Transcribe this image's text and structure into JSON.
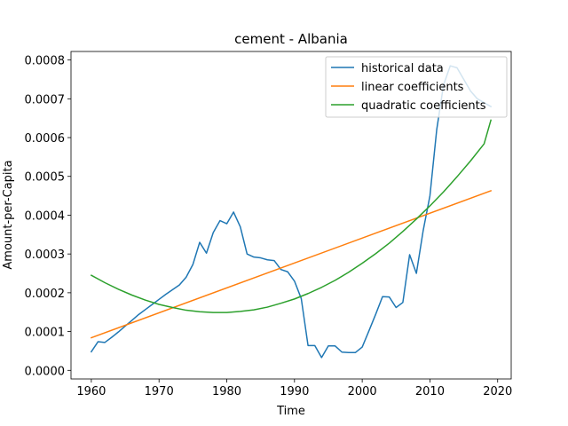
{
  "chart_data": {
    "type": "line",
    "title": "cement - Albania",
    "xlabel": "Time",
    "ylabel": "Amount-per-Capita",
    "xlim": [
      1957,
      2022
    ],
    "ylim": [
      -2.22e-05,
      0.000822
    ],
    "xticks": [
      1960,
      1970,
      1980,
      1990,
      2000,
      2010,
      2020
    ],
    "yticks": [
      {
        "value": 0,
        "label": "0.0000"
      },
      {
        "value": 0.0001,
        "label": "0.0001"
      },
      {
        "value": 0.0002,
        "label": "0.0002"
      },
      {
        "value": 0.0003,
        "label": "0.0003"
      },
      {
        "value": 0.0004,
        "label": "0.0004"
      },
      {
        "value": 0.0005,
        "label": "0.0005"
      },
      {
        "value": 0.0006,
        "label": "0.0006"
      },
      {
        "value": 0.0007,
        "label": "0.0007"
      },
      {
        "value": 0.0008,
        "label": "0.0008"
      }
    ],
    "grid": false,
    "legend_position": "top-right",
    "series": [
      {
        "name": "historical data",
        "color": "#1f77b4",
        "x": [
          1960,
          1961,
          1962,
          1963,
          1964,
          1965,
          1966,
          1967,
          1968,
          1969,
          1970,
          1971,
          1972,
          1973,
          1974,
          1975,
          1976,
          1977,
          1978,
          1979,
          1980,
          1981,
          1982,
          1983,
          1984,
          1985,
          1986,
          1987,
          1988,
          1989,
          1990,
          1991,
          1992,
          1993,
          1994,
          1995,
          1996,
          1997,
          1998,
          1999,
          2000,
          2001,
          2002,
          2003,
          2004,
          2005,
          2006,
          2007,
          2008,
          2009,
          2010,
          2011,
          2012,
          2013,
          2014,
          2015,
          2016,
          2017,
          2018,
          2019
        ],
        "y": [
          4.8e-05,
          7.4e-05,
          7.2e-05,
          8.5e-05,
          9.9e-05,
          0.000114,
          0.000129,
          0.000144,
          0.000157,
          0.00017,
          0.000183,
          0.000196,
          0.000208,
          0.00022,
          0.00024,
          0.000273,
          0.00033,
          0.000302,
          0.000355,
          0.000386,
          0.000378,
          0.000408,
          0.00037,
          0.0003,
          0.000292,
          0.00029,
          0.000285,
          0.000283,
          0.00026,
          0.000254,
          0.00023,
          0.000185,
          6.4e-05,
          6.4e-05,
          3.3e-05,
          6.3e-05,
          6.3e-05,
          4.7e-05,
          4.6e-05,
          4.6e-05,
          6e-05,
          0.000102,
          0.000145,
          0.00019,
          0.000189,
          0.000162,
          0.000175,
          0.000298,
          0.00025,
          0.00036,
          0.00045,
          0.00062,
          0.000735,
          0.000785,
          0.00078,
          0.00075,
          0.00072,
          0.0007,
          0.00069,
          0.00068
        ]
      },
      {
        "name": "linear coefficients",
        "color": "#ff7f0e",
        "x": [
          1960,
          2019
        ],
        "y": [
          8.4e-05,
          0.000463
        ]
      },
      {
        "name": "quadratic coefficients",
        "color": "#2ca02c",
        "x": [
          1960,
          1962,
          1964,
          1966,
          1968,
          1970,
          1972,
          1974,
          1976,
          1978,
          1980,
          1982,
          1984,
          1986,
          1988,
          1990,
          1992,
          1994,
          1996,
          1998,
          2000,
          2002,
          2004,
          2006,
          2008,
          2010,
          2012,
          2014,
          2016,
          2018,
          2019
        ],
        "y": [
          0.000245,
          0.000226,
          0.000209,
          0.000194,
          0.000181,
          0.00017,
          0.000162,
          0.000155,
          0.000151,
          0.000149,
          0.000149,
          0.000152,
          0.000156,
          0.000163,
          0.000173,
          0.000184,
          0.000198,
          0.000214,
          0.000232,
          0.000253,
          0.000276,
          0.000301,
          0.000328,
          0.000358,
          0.00039,
          0.000424,
          0.00046,
          0.000499,
          0.00054,
          0.000584,
          0.000645
        ]
      }
    ]
  }
}
